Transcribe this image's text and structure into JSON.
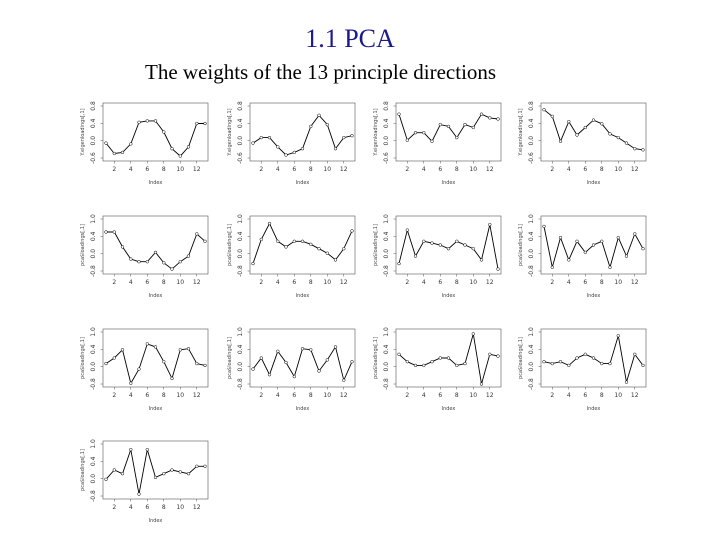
{
  "header": {
    "title": "1.1 PCA",
    "subtitle": "The weights of the 13 principle directions"
  },
  "chart_data": {
    "type": "line",
    "x": [
      1,
      2,
      3,
      4,
      5,
      6,
      7,
      8,
      9,
      10,
      11,
      12,
      13
    ],
    "x_ticks": [
      "2",
      "4",
      "6",
      "8",
      "10",
      "12"
    ],
    "xlabel": "Index",
    "ylim": [
      -0.6,
      0.8
    ],
    "y_ticks_top": [
      "-0.6",
      "0.0",
      "0.4",
      "0.8"
    ],
    "y_ticks_mid": [
      "-0.8",
      "0.0",
      "0.4",
      "1.0"
    ],
    "ylabel_top": "Y.eigenloadings[,1]",
    "ylabel_mid": "pca$loadings[,1]",
    "panels": [
      {
        "values": [
          -0.2,
          -0.48,
          -0.45,
          -0.22,
          0.36,
          0.4,
          0.4,
          0.1,
          -0.35,
          -0.55,
          -0.3,
          0.33,
          0.33
        ]
      },
      {
        "values": [
          -0.2,
          -0.05,
          -0.05,
          -0.3,
          -0.52,
          -0.45,
          -0.35,
          0.25,
          0.55,
          0.3,
          -0.35,
          -0.05,
          0.0
        ]
      },
      {
        "values": [
          0.58,
          -0.12,
          0.08,
          0.08,
          -0.15,
          0.3,
          0.25,
          -0.05,
          0.3,
          0.22,
          0.58,
          0.48,
          0.45
        ]
      },
      {
        "values": [
          0.7,
          0.52,
          -0.15,
          0.38,
          0.02,
          0.22,
          0.42,
          0.32,
          0.05,
          -0.05,
          -0.2,
          -0.35,
          -0.38
        ]
      },
      {
        "values": [
          0.45,
          0.45,
          0.05,
          -0.28,
          -0.35,
          -0.35,
          -0.1,
          -0.38,
          -0.55,
          -0.35,
          -0.2,
          0.4,
          0.2
        ]
      },
      {
        "values": [
          -0.4,
          0.25,
          0.68,
          0.2,
          0.05,
          0.2,
          0.2,
          0.12,
          0.0,
          -0.12,
          -0.3,
          0.0,
          0.48
        ]
      },
      {
        "values": [
          -0.4,
          0.5,
          -0.2,
          0.2,
          0.15,
          0.1,
          0.0,
          0.2,
          0.1,
          0.0,
          -0.3,
          0.65,
          -0.55
        ]
      },
      {
        "values": [
          0.6,
          -0.5,
          0.3,
          -0.3,
          0.2,
          -0.1,
          0.1,
          0.2,
          -0.5,
          0.3,
          -0.2,
          0.4,
          0.0
        ]
      },
      {
        "values": [
          -0.05,
          0.1,
          0.32,
          -0.58,
          -0.2,
          0.48,
          0.4,
          0.0,
          -0.45,
          0.32,
          0.35,
          -0.05,
          -0.1
        ]
      },
      {
        "values": [
          -0.2,
          0.1,
          -0.35,
          0.28,
          -0.02,
          -0.4,
          0.35,
          0.32,
          -0.25,
          0.05,
          0.4,
          -0.5,
          0.0
        ]
      },
      {
        "values": [
          0.2,
          0.0,
          -0.1,
          -0.1,
          0.0,
          0.1,
          0.1,
          -0.1,
          -0.05,
          0.75,
          -0.6,
          0.2,
          0.15
        ]
      },
      {
        "values": [
          0.0,
          -0.05,
          0.0,
          -0.1,
          0.1,
          0.2,
          0.1,
          -0.05,
          -0.05,
          0.7,
          -0.55,
          0.2,
          -0.1
        ]
      },
      {
        "values": [
          -0.15,
          0.1,
          0.0,
          0.65,
          -0.55,
          0.65,
          -0.1,
          0.0,
          0.1,
          0.05,
          0.0,
          0.2,
          0.2
        ]
      }
    ]
  }
}
